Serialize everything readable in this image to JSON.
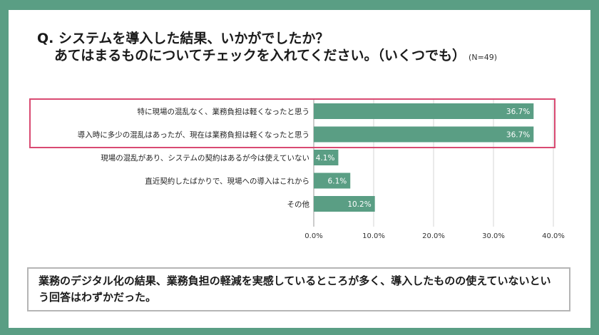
{
  "question": {
    "line1": "Q. システムを導入した結果、いかがでしたか？",
    "line2": "あてはまるものについてチェックを入れてください。（いくつでも）",
    "n_note": "(N=49)"
  },
  "chart_data": {
    "type": "bar",
    "orientation": "horizontal",
    "categories": [
      "特に現場の混乱なく、業務負担は軽くなったと思う",
      "導入時に多少の混乱はあったが、現在は業務負担は軽くなったと思う",
      "現場の混乱があり、システムの契約はあるが今は使えていない",
      "直近契約したばかりで、現場への導入はこれから",
      "その他"
    ],
    "values": [
      36.7,
      36.7,
      4.1,
      6.1,
      10.2
    ],
    "value_labels": [
      "36.7%",
      "36.7%",
      "4.1%",
      "6.1%",
      "10.2%"
    ],
    "xlim": [
      0,
      40
    ],
    "x_ticks": [
      0,
      10,
      20,
      30,
      40
    ],
    "x_tick_labels": [
      "0.0%",
      "10.0%",
      "20.0%",
      "30.0%",
      "40.0%"
    ],
    "grid": true,
    "highlighted_categories": [
      0,
      1
    ],
    "bar_color": "#5a9e84"
  },
  "summary": "業務のデジタル化の結果、業務負担の軽減を実感しているところが多く、導入したものの使えていないという回答はわずかだった。",
  "colors": {
    "frame": "#5a9e84",
    "highlight": "#d94a72",
    "grid": "#d6d6d6"
  }
}
